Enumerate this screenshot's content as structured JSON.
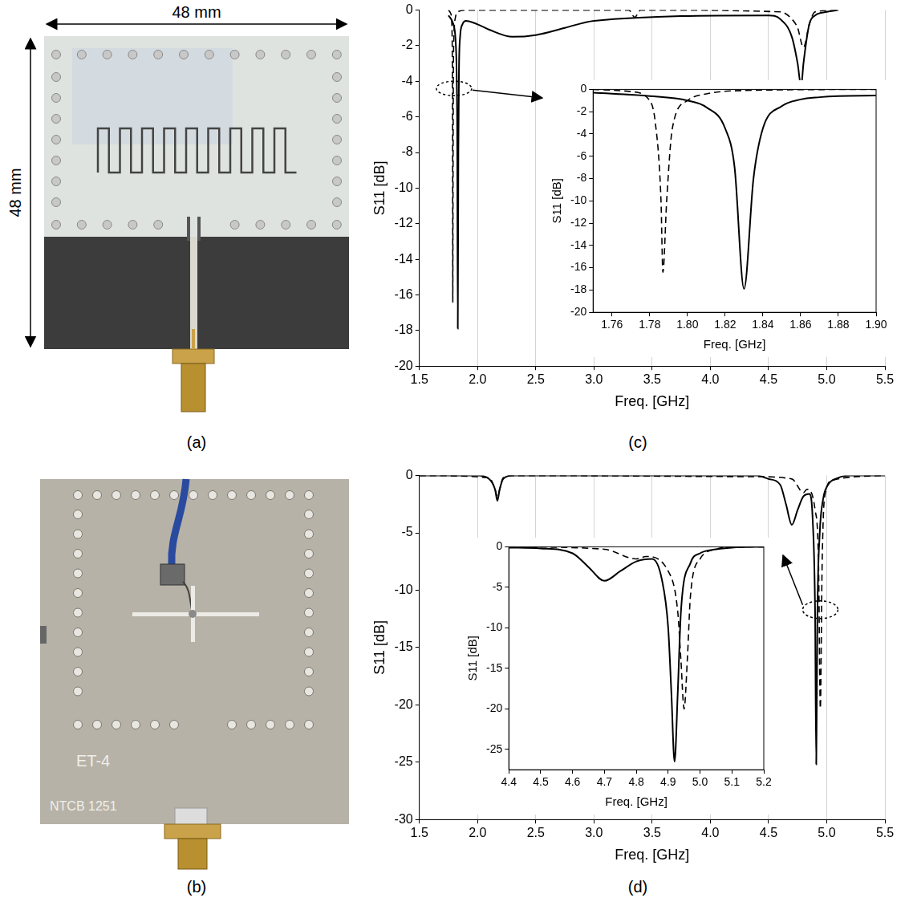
{
  "photos": [
    {
      "panel": "(a)",
      "width_label": "48 mm",
      "height_label": "48 mm"
    },
    {
      "panel": "(b)",
      "board_texts": [
        "ET-4",
        "NTCB 1251"
      ]
    }
  ],
  "chart_data": [
    {
      "panel": "(c)",
      "type": "line",
      "x_label": "Freq. [GHz]",
      "y_label": "S11 [dB]",
      "xlim": [
        1.5,
        5.5
      ],
      "xticks": [
        1.5,
        {
          "value": 2,
          "label": "2.0"
        },
        2.5,
        {
          "value": 3,
          "label": "3.0"
        },
        3.5,
        {
          "value": 4,
          "label": "4.0"
        },
        4.5,
        {
          "value": 5,
          "label": "5.0"
        },
        5.5
      ],
      "ylim": [
        -20,
        0
      ],
      "yticks": [
        -20,
        -18,
        -16,
        -14,
        -12,
        -10,
        -8,
        -6,
        -4,
        -2,
        0
      ],
      "grid": "x",
      "series": [
        {
          "color": "#000000",
          "line_style": "solid",
          "x": [
            1.75,
            1.78,
            1.8,
            1.81,
            1.82,
            1.825,
            1.83,
            1.835,
            1.84,
            1.85,
            1.87,
            1.9,
            2.0,
            2.1,
            2.3,
            2.5,
            2.75,
            3.0,
            4.5,
            4.6,
            4.7,
            4.75,
            4.78,
            4.8,
            4.85,
            4.9,
            5.0,
            5.1
          ],
          "values": [
            -0.3,
            -0.6,
            -1.0,
            -1.6,
            -3.5,
            -7,
            -17.9,
            -8,
            -3.5,
            -1.5,
            -0.8,
            -0.6,
            -0.8,
            -1.1,
            -1.5,
            -1.4,
            -1,
            -0.6,
            -0.3,
            -0.5,
            -1.5,
            -3,
            -4.3,
            -3,
            -0.8,
            -0.3,
            -0.1,
            0
          ]
        },
        {
          "color": "#000000",
          "line_style": "dashed",
          "x": [
            1.75,
            1.77,
            1.78,
            1.783,
            1.786,
            1.787,
            1.789,
            1.792,
            1.8,
            1.81,
            1.83,
            1.9,
            3.3,
            3.35,
            3.4,
            4.6,
            4.7,
            4.75,
            4.8,
            4.85,
            4.9,
            5.1
          ],
          "values": [
            0,
            -0.2,
            -1,
            -3,
            -10,
            -16.4,
            -10,
            -3.5,
            -1,
            -0.4,
            -0.1,
            0,
            0,
            -0.4,
            0,
            -0.1,
            -0.5,
            -1,
            -2.1,
            -0.8,
            -0.1,
            0
          ]
        }
      ],
      "inset": {
        "type": "line",
        "x_label": "Freq. [GHz]",
        "y_label": "S11 [dB]",
        "xlim": [
          1.75,
          1.9
        ],
        "xticks": [
          1.76,
          1.78,
          {
            "value": 1.8,
            "label": "1.80"
          },
          1.82,
          1.84,
          1.86,
          1.88,
          {
            "value": 1.9,
            "label": "1.90"
          }
        ],
        "ylim": [
          -20,
          0
        ],
        "yticks": [
          -20,
          -18,
          -16,
          -14,
          -12,
          -10,
          -8,
          -6,
          -4,
          -2,
          0
        ],
        "grid": false,
        "series": [
          {
            "color": "#000000",
            "line_style": "solid",
            "x": [
              1.75,
              1.78,
              1.8,
              1.81,
              1.82,
              1.825,
              1.83,
              1.835,
              1.84,
              1.85,
              1.86,
              1.87,
              1.88,
              1.9
            ],
            "values": [
              -0.3,
              -0.6,
              -1.0,
              -1.6,
              -3.5,
              -7,
              -17.9,
              -8,
              -3.5,
              -1.5,
              -0.9,
              -0.7,
              -0.6,
              -0.55
            ]
          },
          {
            "color": "#000000",
            "line_style": "dashed",
            "x": [
              1.75,
              1.77,
              1.78,
              1.783,
              1.786,
              1.787,
              1.789,
              1.792,
              1.8,
              1.81,
              1.83,
              1.9
            ],
            "values": [
              0,
              -0.2,
              -1,
              -3,
              -10,
              -16.4,
              -10,
              -3.5,
              -1,
              -0.4,
              -0.1,
              0
            ]
          }
        ]
      }
    },
    {
      "panel": "(d)",
      "type": "line",
      "x_label": "Freq. [GHz]",
      "y_label": "S11 [dB]",
      "xlim": [
        1.5,
        5.5
      ],
      "xticks": [
        1.5,
        {
          "value": 2,
          "label": "2.0"
        },
        2.5,
        {
          "value": 3,
          "label": "3.0"
        },
        3.5,
        {
          "value": 4,
          "label": "4.0"
        },
        4.5,
        {
          "value": 5,
          "label": "5.0"
        },
        5.5
      ],
      "ylim": [
        -30,
        0
      ],
      "yticks": [
        -30,
        -25,
        -20,
        -15,
        -10,
        -5,
        0
      ],
      "grid": "x",
      "series": [
        {
          "color": "#000000",
          "line_style": "solid",
          "x": [
            1.5,
            2.0,
            2.1,
            2.15,
            2.17,
            2.19,
            2.22,
            2.3,
            4.4,
            4.5,
            4.6,
            4.65,
            4.7,
            4.75,
            4.8,
            4.85,
            4.88,
            4.9,
            4.91,
            4.92,
            4.94,
            4.97,
            5.0,
            5.1,
            5.2,
            5.5
          ],
          "values": [
            0,
            0,
            -0.3,
            -1.2,
            -2.2,
            -1.2,
            -0.3,
            0,
            0,
            -0.3,
            -0.8,
            -2.5,
            -4.3,
            -3,
            -1.8,
            -1.6,
            -4,
            -12,
            -25.2,
            -12,
            -5,
            -2,
            -1,
            -0.2,
            0,
            0
          ]
        },
        {
          "color": "#000000",
          "line_style": "dashed",
          "x": [
            1.5,
            2.1,
            2.15,
            2.17,
            2.19,
            2.22,
            2.3,
            4.4,
            4.7,
            4.8,
            4.83,
            4.9,
            4.93,
            4.945,
            4.96,
            4.98,
            5.05,
            5.5
          ],
          "values": [
            0,
            -0.2,
            -1.2,
            -1.8,
            -1.2,
            -0.2,
            0,
            -0.1,
            -0.3,
            -1.5,
            -1.2,
            -3,
            -8,
            -20.3,
            -8,
            -2,
            -0.4,
            0
          ]
        }
      ],
      "inset": {
        "type": "line",
        "x_label": "Freq. [GHz]",
        "y_label": "S11 [dB]",
        "xlim": [
          4.4,
          5.2
        ],
        "xticks": [
          4.4,
          4.5,
          4.6,
          4.7,
          4.8,
          4.9,
          {
            "value": 5,
            "label": "5.0"
          },
          5.1,
          5.2
        ],
        "ylim": [
          -27.5,
          0
        ],
        "yticks": [
          -25,
          -20,
          -15,
          -10,
          -5,
          0
        ],
        "grid": false,
        "series": [
          {
            "color": "#000000",
            "line_style": "solid",
            "x": [
              4.4,
              4.5,
              4.6,
              4.65,
              4.7,
              4.75,
              4.8,
              4.85,
              4.88,
              4.9,
              4.91,
              4.92,
              4.93,
              4.94,
              4.97,
              5.0,
              5.05,
              5.1,
              5.2
            ],
            "values": [
              -0.1,
              -0.2,
              -0.8,
              -2.5,
              -4.2,
              -3,
              -1.8,
              -1.5,
              -4,
              -10,
              -18,
              -26.5,
              -18,
              -8,
              -2,
              -0.8,
              -0.3,
              -0.1,
              0
            ]
          },
          {
            "color": "#000000",
            "line_style": "dashed",
            "x": [
              4.4,
              4.7,
              4.8,
              4.83,
              4.9,
              4.93,
              4.94,
              4.95,
              4.96,
              4.97,
              5.0,
              5.05,
              5.1,
              5.2
            ],
            "values": [
              0,
              -0.3,
              -1.5,
              -1.2,
              -3,
              -8,
              -14,
              -20,
              -14,
              -6,
              -1.5,
              -0.3,
              0,
              0
            ]
          }
        ]
      }
    }
  ]
}
